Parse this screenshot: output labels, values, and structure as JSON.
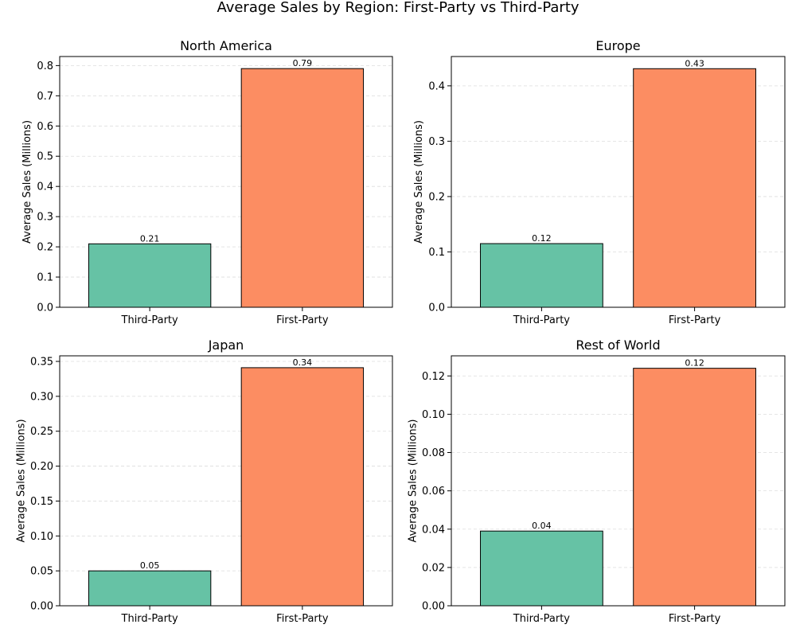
{
  "figure": {
    "title": "Average Sales by Region: First-Party vs Third-Party"
  },
  "colors": {
    "third_party": "#66c2a5",
    "first_party": "#fc8d62",
    "bar_edge": "#000000",
    "grid": "#dddddd"
  },
  "chart_data": [
    {
      "type": "bar",
      "title": "North America",
      "categories": [
        "Third-Party",
        "First-Party"
      ],
      "values": [
        0.21,
        0.79
      ],
      "value_labels": [
        "0.21",
        "0.79"
      ],
      "ylabel": "Average Sales (Millions)",
      "ylim": [
        0,
        0.83
      ],
      "yticks": [
        0.0,
        0.1,
        0.2,
        0.3,
        0.4,
        0.5,
        0.6,
        0.7,
        0.8
      ],
      "ytick_labels": [
        "0.0",
        "0.1",
        "0.2",
        "0.3",
        "0.4",
        "0.5",
        "0.6",
        "0.7",
        "0.8"
      ],
      "grid": "y dashed"
    },
    {
      "type": "bar",
      "title": "Europe",
      "categories": [
        "Third-Party",
        "First-Party"
      ],
      "values": [
        0.115,
        0.431
      ],
      "value_labels": [
        "0.12",
        "0.43"
      ],
      "ylabel": "Average Sales (Millions)",
      "ylim": [
        0,
        0.453
      ],
      "yticks": [
        0.0,
        0.1,
        0.2,
        0.3,
        0.4
      ],
      "ytick_labels": [
        "0.0",
        "0.1",
        "0.2",
        "0.3",
        "0.4"
      ],
      "grid": "y dashed"
    },
    {
      "type": "bar",
      "title": "Japan",
      "categories": [
        "Third-Party",
        "First-Party"
      ],
      "values": [
        0.05,
        0.341
      ],
      "value_labels": [
        "0.05",
        "0.34"
      ],
      "ylabel": "Average Sales (Millions)",
      "ylim": [
        0,
        0.358
      ],
      "yticks": [
        0.0,
        0.05,
        0.1,
        0.15,
        0.2,
        0.25,
        0.3,
        0.35
      ],
      "ytick_labels": [
        "0.00",
        "0.05",
        "0.10",
        "0.15",
        "0.20",
        "0.25",
        "0.30",
        "0.35"
      ],
      "grid": "y dashed"
    },
    {
      "type": "bar",
      "title": "Rest of World",
      "categories": [
        "Third-Party",
        "First-Party"
      ],
      "values": [
        0.039,
        0.124
      ],
      "value_labels": [
        "0.04",
        "0.12"
      ],
      "ylabel": "Average Sales (Millions)",
      "ylim": [
        0,
        0.1305
      ],
      "yticks": [
        0.0,
        0.02,
        0.04,
        0.06,
        0.08,
        0.1,
        0.12
      ],
      "ytick_labels": [
        "0.00",
        "0.02",
        "0.04",
        "0.06",
        "0.08",
        "0.10",
        "0.12"
      ],
      "grid": "y dashed"
    }
  ]
}
